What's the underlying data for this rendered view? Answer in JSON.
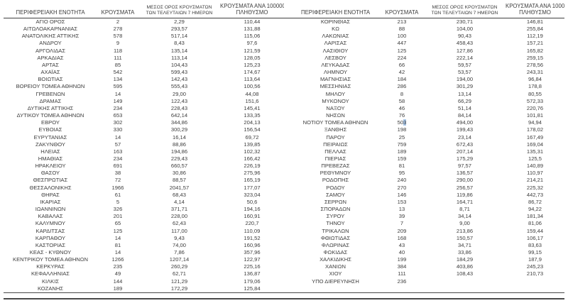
{
  "columns": {
    "region": "ΠΕΡΙΦΕΡΕΙΑΚΗ ΕΝΟΤΗΤΑ",
    "cases": "ΚΡΟΥΣΜΑΤΑ",
    "avg_line1": "ΜΕΣΟΣ ΟΡΟΣ ΚΡΟΥΣΜΑΤΩΝ",
    "avg_line2": "ΤΩΝ ΤΕΛΕΥΤΑΙΩΝ 7 ΗΜΕΡΩΝ",
    "per100k_line1": "ΚΡΟΥΣΜΑΤΑ ΑΝΑ 100000",
    "per100k_line2": "ΠΛΗΘΥΣΜΟ"
  },
  "left_table": {
    "rows": [
      [
        "ΑΓΙΟ ΟΡΟΣ",
        "2",
        "2,29",
        "110,44"
      ],
      [
        "ΑΙΤΩΛΟΑΚΑΡΝΑΝΙΑΣ",
        "278",
        "293,57",
        "131,88"
      ],
      [
        "ΑΝΑΤΟΛΙΚΗΣ ΑΤΤΙΚΗΣ",
        "578",
        "517,14",
        "115,06"
      ],
      [
        "ΑΝΔΡΟΥ",
        "9",
        "8,43",
        "97,6"
      ],
      [
        "ΑΡΓΟΛΙΔΑΣ",
        "118",
        "135,14",
        "121,59"
      ],
      [
        "ΑΡΚΑΔΙΑΣ",
        "111",
        "113,14",
        "128,05"
      ],
      [
        "ΑΡΤΑΣ",
        "85",
        "104,43",
        "125,23"
      ],
      [
        "ΑΧΑΪΑΣ",
        "542",
        "599,43",
        "174,67"
      ],
      [
        "ΒΟΙΩΤΙΑΣ",
        "134",
        "142,43",
        "113,64"
      ],
      [
        "ΒΟΡΕΙΟΥ ΤΟΜΕΑ ΑΘΗΝΩΝ",
        "595",
        "555,43",
        "100,56"
      ],
      [
        "ΓΡΕΒΕΝΩΝ",
        "14",
        "29,00",
        "44,08"
      ],
      [
        "ΔΡΑΜΑΣ",
        "149",
        "122,43",
        "151,6"
      ],
      [
        "ΔΥΤΙΚΗΣ ΑΤΤΙΚΗΣ",
        "234",
        "228,43",
        "145,41"
      ],
      [
        "ΔΥΤΙΚΟΥ ΤΟΜΕΑ ΑΘΗΝΩΝ",
        "653",
        "642,14",
        "133,35"
      ],
      [
        "ΕΒΡΟΥ",
        "302",
        "344,86",
        "204,13"
      ],
      [
        "ΕΥΒΟΙΑΣ",
        "330",
        "300,29",
        "156,54"
      ],
      [
        "ΕΥΡΥΤΑΝΙΑΣ",
        "14",
        "16,14",
        "69,72"
      ],
      [
        "ΖΑΚΥΝΘΟΥ",
        "57",
        "88,86",
        "139,85"
      ],
      [
        "ΗΛΕΙΑΣ",
        "163",
        "194,86",
        "102,32"
      ],
      [
        "ΗΜΑΘΙΑΣ",
        "234",
        "229,43",
        "166,42"
      ],
      [
        "ΗΡΑΚΛΕΙΟΥ",
        "691",
        "660,57",
        "226,19"
      ],
      [
        "ΘΑΣΟΥ",
        "38",
        "30,86",
        "275,96"
      ],
      [
        "ΘΕΣΠΡΩΤΙΑΣ",
        "72",
        "88,57",
        "165,19"
      ],
      [
        "ΘΕΣΣΑΛΟΝΙΚΗΣ",
        "1966",
        "2041,57",
        "177,07"
      ],
      [
        "ΘΗΡΑΣ",
        "61",
        "68,43",
        "323,04"
      ],
      [
        "ΙΚΑΡΙΑΣ",
        "5",
        "4,14",
        "50,6"
      ],
      [
        "ΙΩΑΝΝΙΝΩΝ",
        "326",
        "371,71",
        "194,16"
      ],
      [
        "ΚΑΒΑΛΑΣ",
        "201",
        "228,00",
        "160,91"
      ],
      [
        "ΚΑΛΥΜΝΟΥ",
        "65",
        "62,43",
        "220,7"
      ],
      [
        "ΚΑΡΔΙΤΣΑΣ",
        "125",
        "117,00",
        "110,09"
      ],
      [
        "ΚΑΡΠΑΘΟΥ",
        "14",
        "9,43",
        "191,52"
      ],
      [
        "ΚΑΣΤΟΡΙΑΣ",
        "81",
        "74,00",
        "160,96"
      ],
      [
        "ΚΕΑΣ - ΚΥΘΝΟΥ",
        "14",
        "7,86",
        "357,96"
      ],
      [
        "ΚΕΝΤΡΙΚΟΥ ΤΟΜΕΑ ΑΘΗΝΩΝ",
        "1266",
        "1207,14",
        "122,97"
      ],
      [
        "ΚΕΡΚΥΡΑΣ",
        "235",
        "260,29",
        "225,16"
      ],
      [
        "ΚΕΦΑΛΛΗΝΙΑΣ",
        "49",
        "62,71",
        "136,87"
      ],
      [
        "ΚΙΛΚΙΣ",
        "144",
        "121,29",
        "179,06"
      ],
      [
        "ΚΟΖΑΝΗΣ",
        "189",
        "172,29",
        "125,84"
      ]
    ]
  },
  "right_table": {
    "rows": [
      [
        "ΚΟΡΙΝΘΙΑΣ",
        "213",
        "230,71",
        "146,81"
      ],
      [
        "ΚΩ",
        "88",
        "104,00",
        "255,84"
      ],
      [
        "ΛΑΚΩΝΙΑΣ",
        "100",
        "90,43",
        "112,19"
      ],
      [
        "ΛΑΡΙΣΑΣ",
        "447",
        "458,43",
        "157,21"
      ],
      [
        "ΛΑΣΙΘΙΟΥ",
        "125",
        "127,86",
        "165,82"
      ],
      [
        "ΛΕΣΒΟΥ",
        "224",
        "222,14",
        "259,15"
      ],
      [
        "ΛΕΥΚΑΔΑΣ",
        "66",
        "59,57",
        "278,56"
      ],
      [
        "ΛΗΜΝΟΥ",
        "42",
        "53,57",
        "243,31"
      ],
      [
        "ΜΑΓΝΗΣΙΑΣ",
        "184",
        "194,00",
        "96,84"
      ],
      [
        "ΜΕΣΣΗΝΙΑΣ",
        "286",
        "301,29",
        "178,8"
      ],
      [
        "ΜΗΛΟΥ",
        "8",
        "13,14",
        "80,55"
      ],
      [
        "ΜΥΚΟΝΟΥ",
        "58",
        "66,29",
        "572,33"
      ],
      [
        "ΝΑΞΟΥ",
        "46",
        "51,14",
        "220,76"
      ],
      [
        "ΝΗΣΩΝ",
        "76",
        "84,14",
        "101,81"
      ],
      [
        "ΝΟΤΙΟΥ ΤΟΜΕΑ ΑΘΗΝΩΝ",
        "503",
        "494,00",
        "94,94"
      ],
      [
        "ΞΑΝΘΗΣ",
        "198",
        "199,43",
        "178,02"
      ],
      [
        "ΠΑΡΟΥ",
        "25",
        "23,14",
        "167,49"
      ],
      [
        "ΠΕΙΡΑΙΩΣ",
        "759",
        "672,43",
        "169,04"
      ],
      [
        "ΠΕΛΛΑΣ",
        "189",
        "207,14",
        "135,31"
      ],
      [
        "ΠΙΕΡΙΑΣ",
        "159",
        "175,29",
        "125,5"
      ],
      [
        "ΠΡΕΒΕΖΑΣ",
        "81",
        "97,57",
        "140,89"
      ],
      [
        "ΡΕΘΥΜΝΟΥ",
        "95",
        "136,57",
        "110,97"
      ],
      [
        "ΡΟΔΟΠΗΣ",
        "240",
        "290,00",
        "214,21"
      ],
      [
        "ΡΟΔΟΥ",
        "270",
        "256,57",
        "225,32"
      ],
      [
        "ΣΑΜΟΥ",
        "146",
        "119,86",
        "442,73"
      ],
      [
        "ΣΕΡΡΩΝ",
        "153",
        "164,71",
        "86,72"
      ],
      [
        "ΣΠΟΡΑΔΩΝ",
        "13",
        "8,71",
        "94,22"
      ],
      [
        "ΣΥΡΟΥ",
        "39",
        "34,14",
        "181,34"
      ],
      [
        "ΤΗΝΟΥ",
        "7",
        "9,00",
        "81,06"
      ],
      [
        "ΤΡΙΚΑΛΩΝ",
        "209",
        "213,86",
        "159,44"
      ],
      [
        "ΦΘΙΩΤΙΔΑΣ",
        "168",
        "150,57",
        "106,17"
      ],
      [
        "ΦΛΩΡΙΝΑΣ",
        "43",
        "34,71",
        "83,63"
      ],
      [
        "ΦΩΚΙΔΑΣ",
        "40",
        "33,86",
        "99,15"
      ],
      [
        "ΧΑΛΚΙΔΙΚΗΣ",
        "199",
        "184,29",
        "187,9"
      ],
      [
        "ΧΑΝΙΩΝ",
        "384",
        "403,86",
        "245,23"
      ],
      [
        "ΧΙΟΥ",
        "111",
        "108,43",
        "210,73"
      ],
      [
        "ΥΠΟ ΔΙΕΡΕΥΝΗΣΗ",
        "236",
        "",
        ""
      ]
    ]
  },
  "text_selection": {
    "table": "right_table",
    "row_index": 14,
    "col_index": 1,
    "highlight_from_char": 2,
    "highlight_color": "#a9c7e9"
  },
  "colors": {
    "text": "#3d3d3d",
    "rule": "#4a4a4a",
    "selection_highlight": "#a9c7e9"
  }
}
